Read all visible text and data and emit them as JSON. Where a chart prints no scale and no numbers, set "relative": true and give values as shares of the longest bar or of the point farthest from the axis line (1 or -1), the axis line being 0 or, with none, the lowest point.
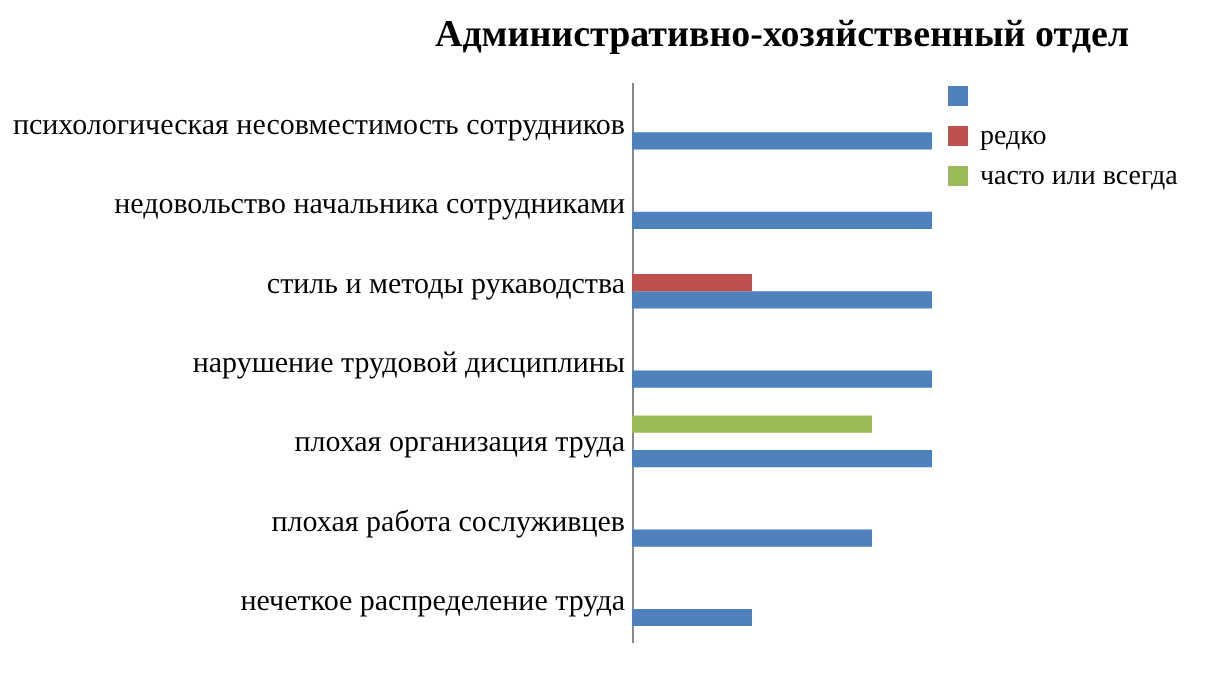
{
  "chart_data": {
    "type": "bar",
    "orientation": "horizontal",
    "relative": true,
    "title": "Административно-хозяйственный отдел",
    "categories": [
      "психологическая несовместимость сотрудников",
      "недовольство начальника сотрудниками",
      "стиль и методы рукаводства",
      "нарушение трудовой дисциплины",
      "плохая организация труда",
      "плохая работа сослуживцев",
      "нечеткое распределение труда"
    ],
    "series": [
      {
        "color": "#4f81bd",
        "values": [
          1,
          1,
          1,
          1,
          1,
          0.8,
          0.4
        ]
      },
      {
        "name": "редко",
        "color": "#c0504d",
        "values": [
          null,
          null,
          0.4,
          null,
          null,
          null,
          null
        ]
      },
      {
        "name": "часто или всегда",
        "color": "#9bbb59",
        "values": [
          null,
          null,
          null,
          null,
          0.8,
          null,
          null
        ]
      }
    ],
    "legend": "right"
  }
}
